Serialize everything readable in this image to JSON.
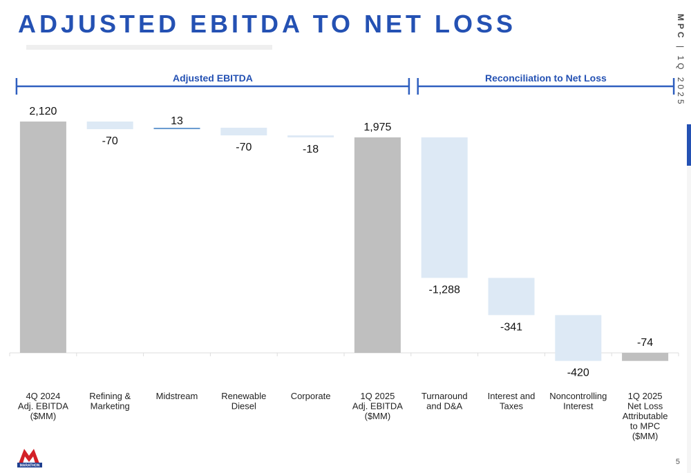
{
  "slide": {
    "title": "ADJUSTED EBITDA TO NET LOSS",
    "side_label_strong": "MPC",
    "side_label_rest": " | 1Q 2025",
    "page_number": "5",
    "logo_text": "MARATHON"
  },
  "chart_data": {
    "type": "bar",
    "subtype": "waterfall",
    "title": "",
    "xlabel": "",
    "ylabel": "",
    "grid": false,
    "sections": [
      {
        "label": "Adjusted EBITDA",
        "from": 0,
        "to": 5
      },
      {
        "label": "Reconciliation to Net Loss",
        "from": 6,
        "to": 9
      }
    ],
    "categories": [
      [
        "4Q 2024",
        "Adj. EBITDA",
        "($MM)"
      ],
      [
        "Refining &",
        "Marketing"
      ],
      [
        "Midstream"
      ],
      [
        "Renewable",
        "Diesel"
      ],
      [
        "Corporate"
      ],
      [
        "1Q 2025",
        "Adj. EBITDA",
        "($MM)"
      ],
      [
        "Turnaround",
        "and D&A"
      ],
      [
        "Interest and",
        "Taxes"
      ],
      [
        "Noncontrolling",
        "Interest"
      ],
      [
        "1Q 2025",
        "Net Loss",
        "Attributable",
        "to MPC",
        "($MM)"
      ]
    ],
    "values": [
      2120,
      -70,
      13,
      -70,
      -18,
      1975,
      -1288,
      -341,
      -420,
      -74
    ],
    "labels": [
      "2,120",
      "-70",
      "13",
      "-70",
      "-18",
      "1,975",
      "-1,288",
      "-341",
      "-420",
      "-74"
    ],
    "kinds": [
      "total",
      "delta",
      "delta",
      "delta",
      "delta",
      "total",
      "delta",
      "delta",
      "delta",
      "total"
    ],
    "colors": {
      "total": "#bfbfbf",
      "increase": "#6a9bd1",
      "decrease": "#dde9f5",
      "bracket": "#2f5fbf",
      "section_text": "#2451b3"
    }
  }
}
